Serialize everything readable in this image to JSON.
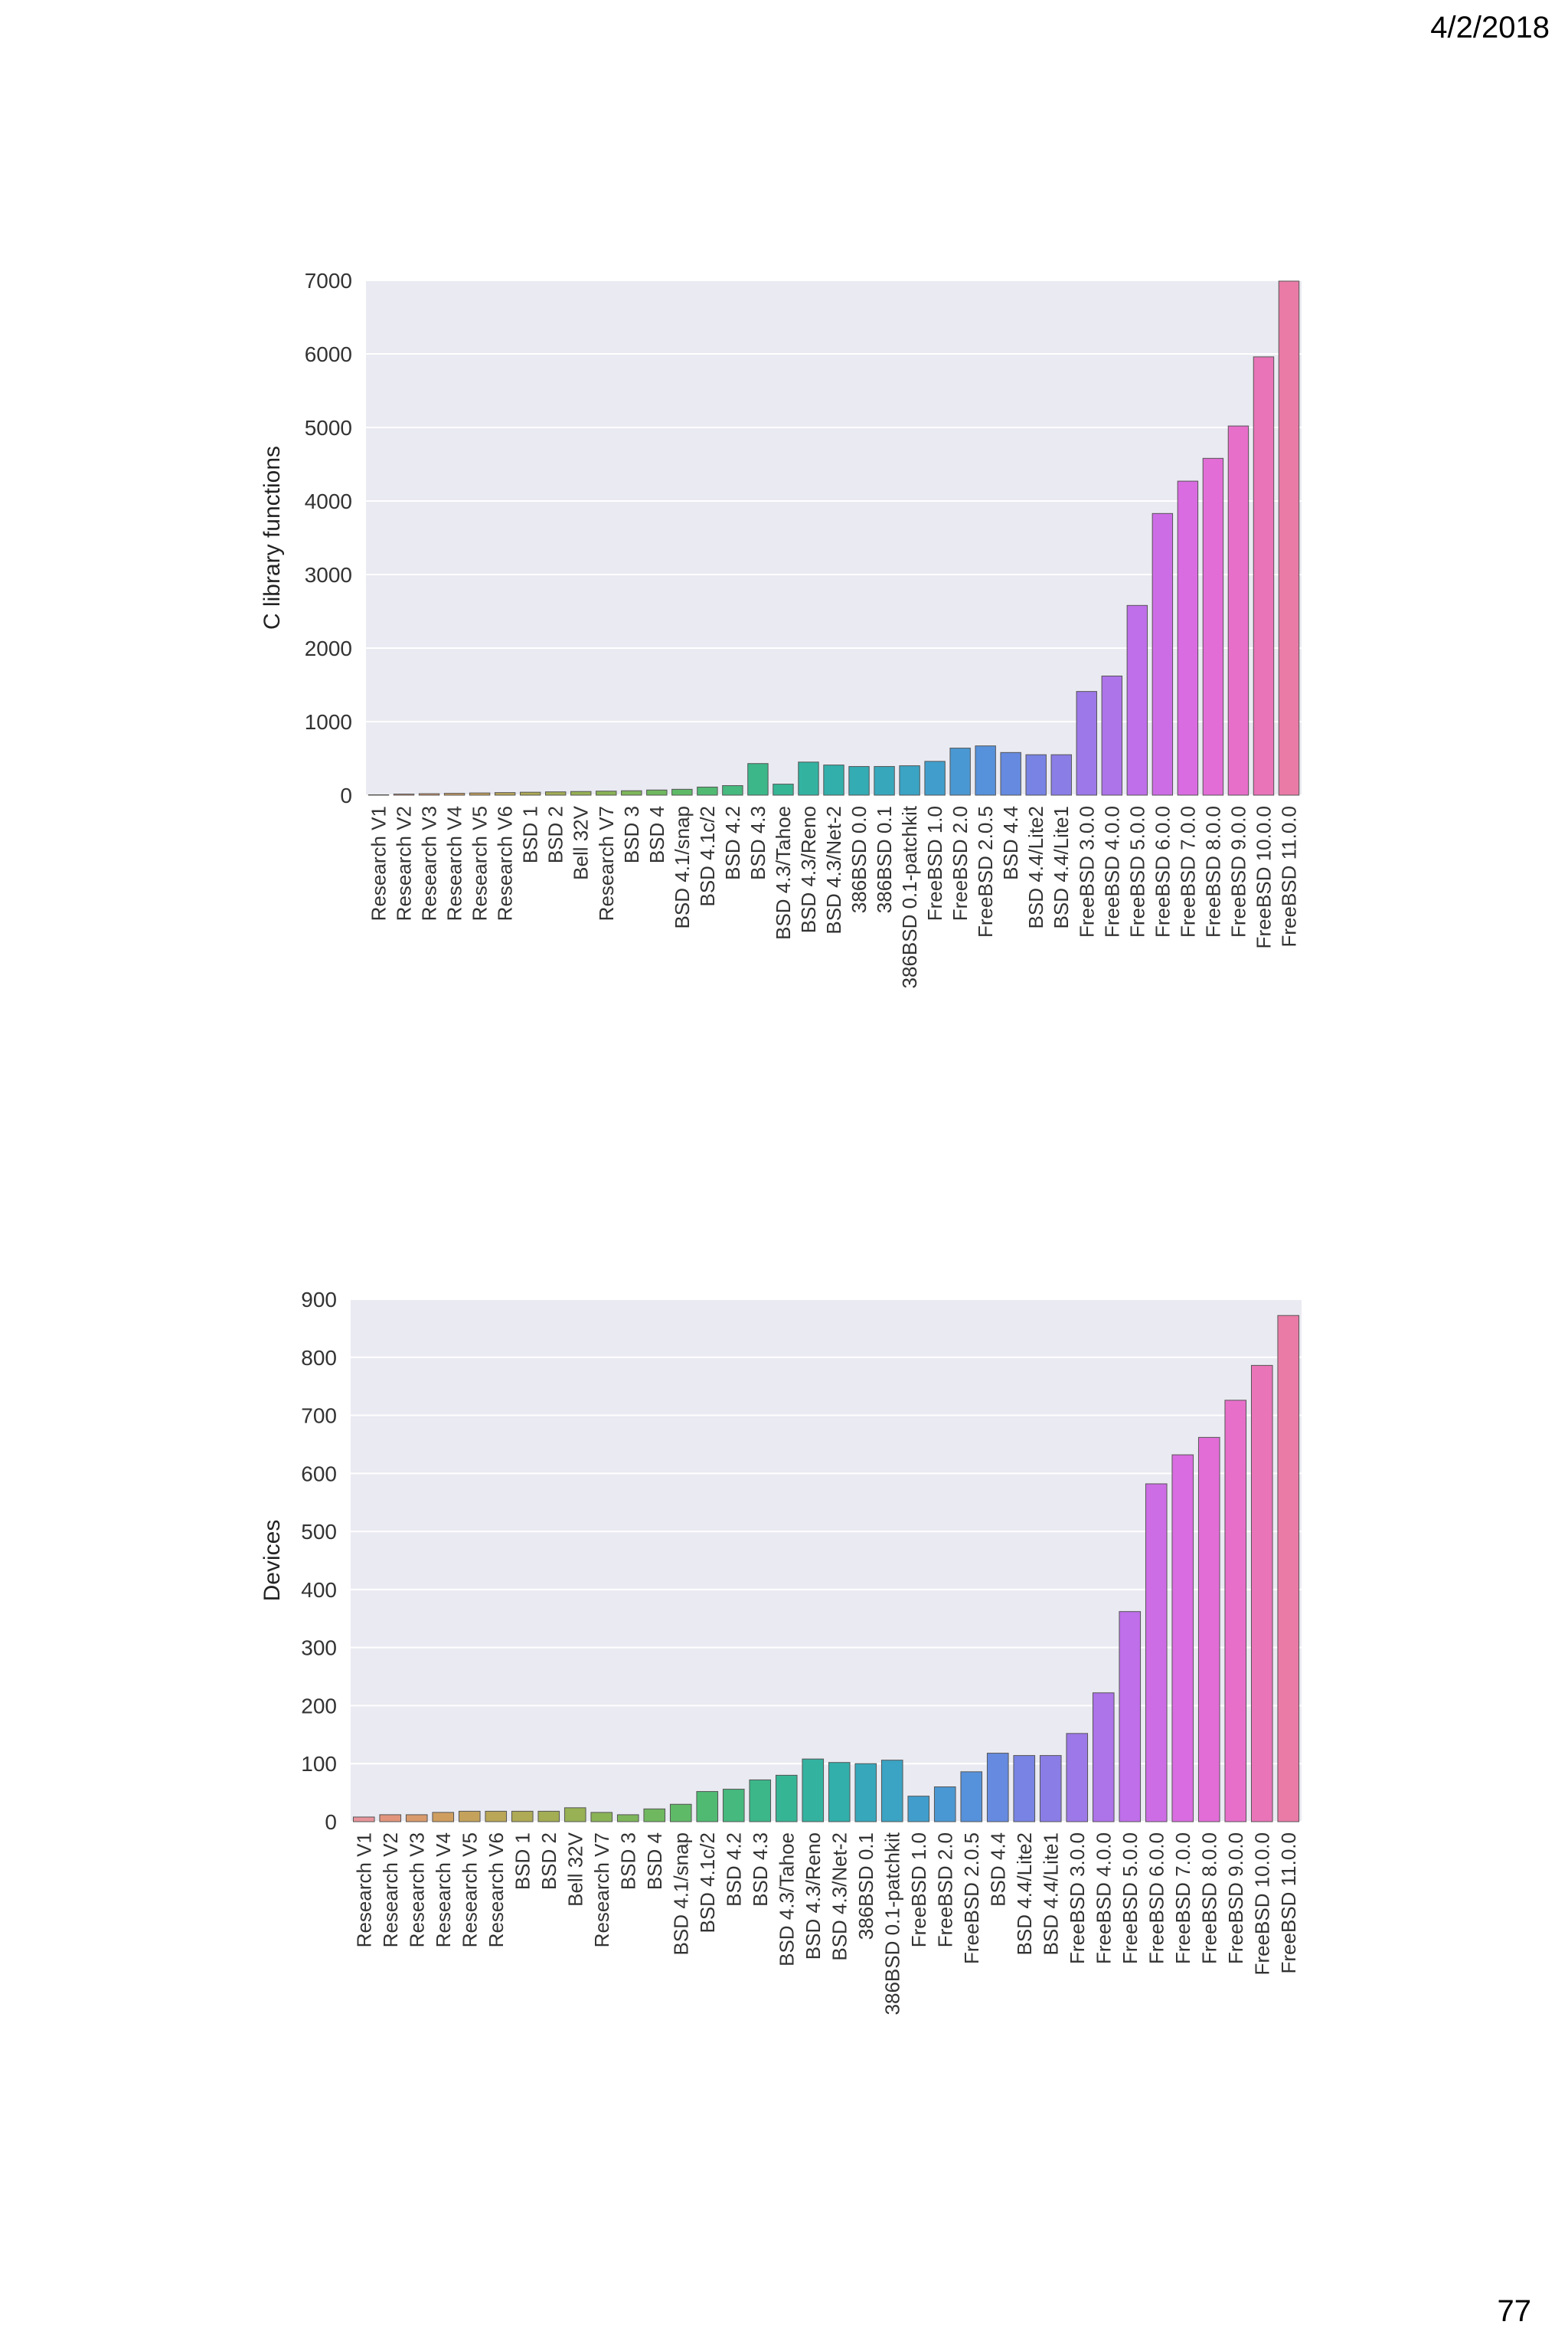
{
  "page": {
    "date": "4/2/2018",
    "number": "77"
  },
  "chart_data": [
    {
      "type": "bar",
      "ylabel": "C library functions",
      "ylim": [
        0,
        7000
      ],
      "yticks": [
        0,
        1000,
        2000,
        3000,
        4000,
        5000,
        6000,
        7000
      ],
      "grid": true,
      "categories": [
        "Research V1",
        "Research V2",
        "Research V3",
        "Research V4",
        "Research V5",
        "Research V6",
        "BSD 1",
        "BSD 2",
        "Bell 32V",
        "Research V7",
        "BSD 3",
        "BSD 4",
        "BSD 4.1/snap",
        "BSD 4.1c/2",
        "BSD 4.2",
        "BSD 4.3",
        "BSD 4.3/Tahoe",
        "BSD 4.3/Reno",
        "BSD 4.3/Net-2",
        "386BSD 0.0",
        "386BSD 0.1",
        "386BSD 0.1-patchkit",
        "FreeBSD 1.0",
        "FreeBSD 2.0",
        "FreeBSD 2.0.5",
        "BSD 4.4",
        "BSD 4.4/Lite2",
        "BSD 4.4/Lite1",
        "FreeBSD 3.0.0",
        "FreeBSD 4.0.0",
        "FreeBSD 5.0.0",
        "FreeBSD 6.0.0",
        "FreeBSD 7.0.0",
        "FreeBSD 8.0.0",
        "FreeBSD 9.0.0",
        "FreeBSD 10.0.0",
        "FreeBSD 11.0.0"
      ],
      "values": [
        5,
        15,
        20,
        25,
        30,
        35,
        40,
        45,
        50,
        55,
        60,
        70,
        80,
        110,
        130,
        430,
        150,
        450,
        410,
        390,
        390,
        400,
        460,
        640,
        670,
        580,
        550,
        550,
        1410,
        1620,
        2580,
        3830,
        4270,
        4580,
        5020,
        5960,
        6990
      ],
      "colors": [
        "#e8939a",
        "#e2957c",
        "#d99a6c",
        "#cf9e5f",
        "#c4a25b",
        "#b9a657",
        "#aeaa55",
        "#a3ad54",
        "#97b154",
        "#8ab356",
        "#7db65a",
        "#6fb85f",
        "#5fba67",
        "#50ba72",
        "#45b97e",
        "#3cb78a",
        "#36b595",
        "#33b2a0",
        "#32afaa",
        "#34acb3",
        "#37a8bc",
        "#3ba3c4",
        "#419ecc",
        "#4a98d3",
        "#5691db",
        "#658ae0",
        "#7883e4",
        "#8a7de6",
        "#9c78e8",
        "#ad73e9",
        "#be6fe9",
        "#cd6de6",
        "#d96ce0",
        "#e26dd7",
        "#e76fca",
        "#e974b8",
        "#e97ba6"
      ]
    },
    {
      "type": "bar",
      "ylabel": "Devices",
      "ylim": [
        0,
        900
      ],
      "yticks": [
        0,
        100,
        200,
        300,
        400,
        500,
        600,
        700,
        800,
        900
      ],
      "grid": true,
      "categories": [
        "Research V1",
        "Research V2",
        "Research V3",
        "Research V4",
        "Research V5",
        "Research V6",
        "BSD 1",
        "BSD 2",
        "Bell 32V",
        "Research V7",
        "BSD 3",
        "BSD 4",
        "BSD 4.1/snap",
        "BSD 4.1c/2",
        "BSD 4.2",
        "BSD 4.3",
        "BSD 4.3/Tahoe",
        "BSD 4.3/Reno",
        "BSD 4.3/Net-2",
        "386BSD 0.1",
        "386BSD 0.1-patchkit",
        "FreeBSD 1.0",
        "FreeBSD 2.0",
        "FreeBSD 2.0.5",
        "BSD 4.4",
        "BSD 4.4/Lite2",
        "BSD 4.4/Lite1",
        "FreeBSD 3.0.0",
        "FreeBSD 4.0.0",
        "FreeBSD 5.0.0",
        "FreeBSD 6.0.0",
        "FreeBSD 7.0.0",
        "FreeBSD 8.0.0",
        "FreeBSD 9.0.0",
        "FreeBSD 10.0.0",
        "FreeBSD 11.0.0"
      ],
      "values": [
        8,
        12,
        12,
        16,
        18,
        18,
        18,
        18,
        24,
        16,
        12,
        22,
        30,
        52,
        56,
        72,
        80,
        108,
        102,
        100,
        106,
        44,
        60,
        86,
        118,
        114,
        114,
        152,
        222,
        362,
        582,
        632,
        662,
        726,
        786,
        872
      ],
      "colors": [
        "#e8939a",
        "#e2957c",
        "#d99a6c",
        "#cf9e5f",
        "#c4a25b",
        "#b9a657",
        "#aeaa55",
        "#a3ad54",
        "#97b154",
        "#8ab356",
        "#7db65a",
        "#6fb85f",
        "#5fba67",
        "#50ba72",
        "#45b97e",
        "#3cb78a",
        "#36b595",
        "#33b2a0",
        "#32afaa",
        "#37a8bc",
        "#3ba3c4",
        "#419ecc",
        "#4a98d3",
        "#5691db",
        "#658ae0",
        "#7883e4",
        "#8a7de6",
        "#9c78e8",
        "#ad73e9",
        "#be6fe9",
        "#cd6de6",
        "#d96ce0",
        "#e26dd7",
        "#e76fca",
        "#e974b8",
        "#e97ba6"
      ]
    }
  ]
}
